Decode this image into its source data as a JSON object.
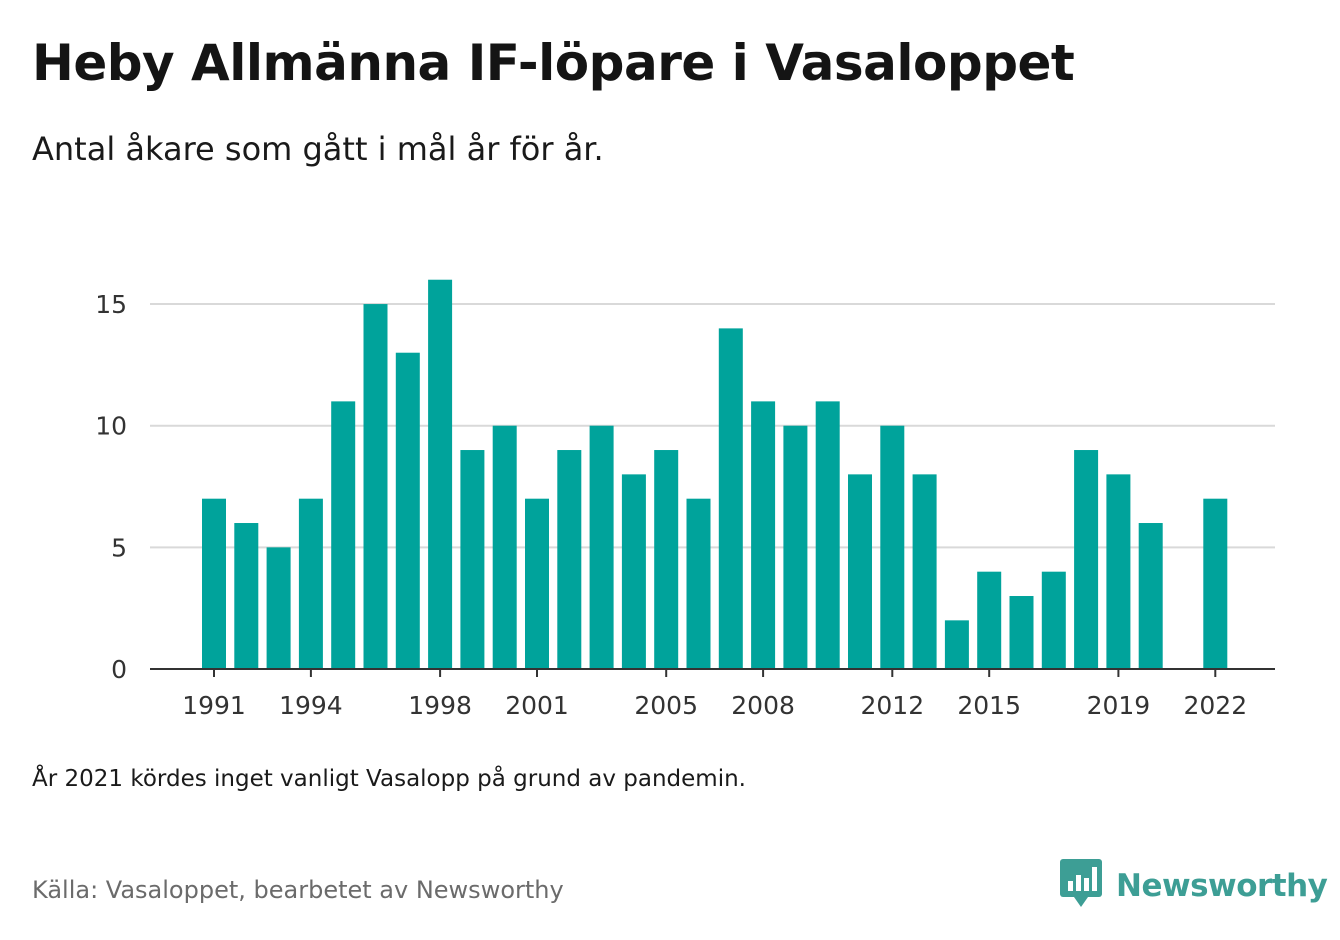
{
  "header": {
    "title": "Heby Allmänna IF-löpare i Vasaloppet",
    "subtitle": "Antal åkare som gått i mål år för år."
  },
  "footer": {
    "note": "År 2021 kördes inget vanligt Vasalopp på grund av pandemin.",
    "source": "Källa: Vasaloppet, bearbetet av Newsworthy",
    "brand": "Newsworthy"
  },
  "colors": {
    "bar": "#00a39b",
    "grid": "#d9d9d9",
    "axis": "#333333",
    "brand": "#3d9e95"
  },
  "chart_data": {
    "type": "bar",
    "categories": [
      1991,
      1992,
      1993,
      1994,
      1995,
      1996,
      1997,
      1998,
      1999,
      2000,
      2001,
      2002,
      2003,
      2004,
      2005,
      2006,
      2007,
      2008,
      2009,
      2010,
      2011,
      2012,
      2013,
      2014,
      2015,
      2016,
      2017,
      2018,
      2019,
      2020,
      2021,
      2022
    ],
    "values": [
      7,
      6,
      5,
      7,
      11,
      15,
      13,
      16,
      9,
      10,
      7,
      9,
      10,
      8,
      9,
      7,
      14,
      11,
      10,
      11,
      8,
      10,
      8,
      2,
      4,
      3,
      4,
      9,
      8,
      6,
      null,
      7
    ],
    "x_tick_labels": [
      "1991",
      "1994",
      "1998",
      "2001",
      "2005",
      "2008",
      "2012",
      "2015",
      "2019",
      "2022"
    ],
    "y_ticks": [
      0,
      5,
      10,
      15
    ],
    "ylim": [
      0,
      17
    ],
    "grid": true
  }
}
